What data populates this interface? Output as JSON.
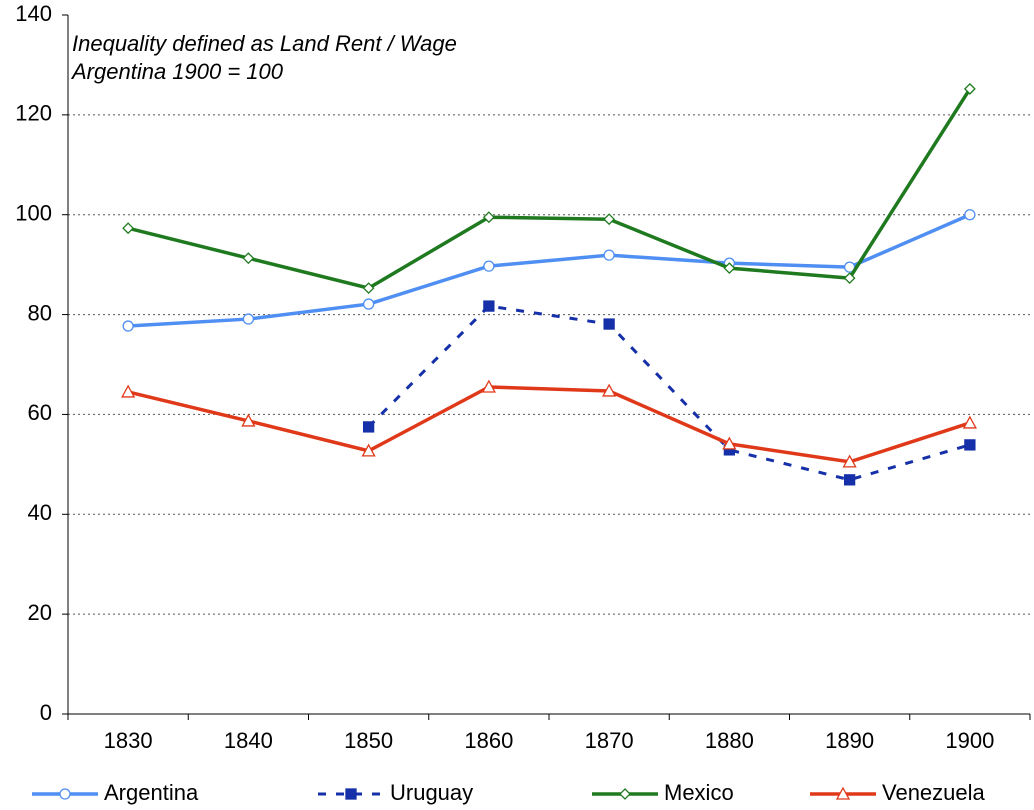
{
  "chart_data": {
    "type": "line",
    "annotations": [
      "Inequality defined as Land Rent / Wage",
      "Argentina 1900 = 100"
    ],
    "categories": [
      "1830",
      "1840",
      "1850",
      "1860",
      "1870",
      "1880",
      "1890",
      "1900"
    ],
    "series": [
      {
        "name": "Argentina",
        "color": "#4f8ef2",
        "marker": "circle",
        "dashed": false,
        "values": [
          77.7,
          79.1,
          82.1,
          89.7,
          91.9,
          90.3,
          89.5,
          100
        ]
      },
      {
        "name": "Uruguay",
        "color": "#1530a8",
        "marker": "square",
        "dashed": true,
        "values": [
          null,
          null,
          57.5,
          81.7,
          78.1,
          52.9,
          46.9,
          53.9
        ]
      },
      {
        "name": "Mexico",
        "color": "#1f7a1f",
        "marker": "diamond",
        "dashed": false,
        "values": [
          97.3,
          91.3,
          85.3,
          99.5,
          99.1,
          89.3,
          87.3,
          125.2
        ]
      },
      {
        "name": "Venezuela",
        "color": "#e0391a",
        "marker": "triangle",
        "dashed": false,
        "values": [
          64.5,
          58.7,
          52.7,
          65.5,
          64.7,
          54.1,
          50.5,
          58.3
        ]
      }
    ],
    "ylim": [
      0,
      140
    ],
    "yticks": [
      0,
      20,
      40,
      60,
      80,
      100,
      120,
      140
    ],
    "grid": true,
    "legend": "bottom"
  }
}
